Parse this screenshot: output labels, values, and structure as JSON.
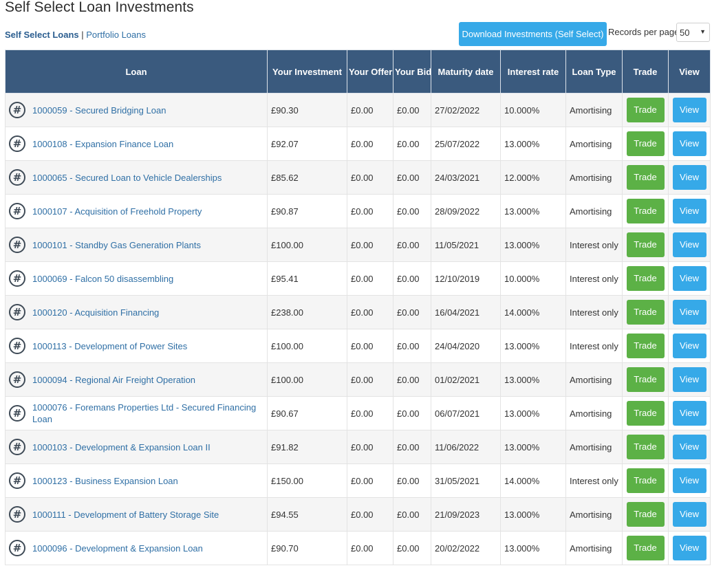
{
  "page": {
    "title": "Self Select Loan Investments",
    "nav": {
      "self_select": "Self Select Loans",
      "separator": " | ",
      "portfolio": "Portfolio Loans"
    },
    "download_label": "Download Investments (Self Select)",
    "records_label": "Records per page",
    "records_value": "50"
  },
  "table": {
    "headers": [
      "Loan",
      "Your Investment",
      "Your Offers",
      "Your Bids",
      "Maturity date",
      "Interest rate",
      "Loan Type",
      "Trade",
      "View"
    ],
    "trade_label": "Trade",
    "view_label": "View",
    "rows": [
      {
        "loan": "1000059 - Secured Bridging Loan",
        "investment": "£90.30",
        "offers": "£0.00",
        "bids": "£0.00",
        "maturity": "27/02/2022",
        "rate": "10.000%",
        "type": "Amortising"
      },
      {
        "loan": "1000108 - Expansion Finance Loan",
        "investment": "£92.07",
        "offers": "£0.00",
        "bids": "£0.00",
        "maturity": "25/07/2022",
        "rate": "13.000%",
        "type": "Amortising"
      },
      {
        "loan": "1000065 - Secured Loan to Vehicle Dealerships",
        "investment": "£85.62",
        "offers": "£0.00",
        "bids": "£0.00",
        "maturity": "24/03/2021",
        "rate": "12.000%",
        "type": "Amortising"
      },
      {
        "loan": "1000107 - Acquisition of Freehold Property",
        "investment": "£90.87",
        "offers": "£0.00",
        "bids": "£0.00",
        "maturity": "28/09/2022",
        "rate": "13.000%",
        "type": "Amortising"
      },
      {
        "loan": "1000101 - Standby Gas Generation Plants",
        "investment": "£100.00",
        "offers": "£0.00",
        "bids": "£0.00",
        "maturity": "11/05/2021",
        "rate": "13.000%",
        "type": "Interest only"
      },
      {
        "loan": "1000069 - Falcon 50 disassembling",
        "investment": "£95.41",
        "offers": "£0.00",
        "bids": "£0.00",
        "maturity": "12/10/2019",
        "rate": "10.000%",
        "type": "Interest only"
      },
      {
        "loan": "1000120 - Acquisition Financing",
        "investment": "£238.00",
        "offers": "£0.00",
        "bids": "£0.00",
        "maturity": "16/04/2021",
        "rate": "14.000%",
        "type": "Interest only"
      },
      {
        "loan": "1000113 - Development of Power Sites",
        "investment": "£100.00",
        "offers": "£0.00",
        "bids": "£0.00",
        "maturity": "24/04/2020",
        "rate": "13.000%",
        "type": "Interest only"
      },
      {
        "loan": "1000094 - Regional Air Freight Operation",
        "investment": "£100.00",
        "offers": "£0.00",
        "bids": "£0.00",
        "maturity": "01/02/2021",
        "rate": "13.000%",
        "type": "Amortising"
      },
      {
        "loan": "1000076 - Foremans Properties Ltd - Secured Financing Loan",
        "investment": "£90.67",
        "offers": "£0.00",
        "bids": "£0.00",
        "maturity": "06/07/2021",
        "rate": "13.000%",
        "type": "Amortising"
      },
      {
        "loan": "1000103 - Development & Expansion Loan II",
        "investment": "£91.82",
        "offers": "£0.00",
        "bids": "£0.00",
        "maturity": "11/06/2022",
        "rate": "13.000%",
        "type": "Amortising"
      },
      {
        "loan": "1000123 - Business Expansion Loan",
        "investment": "£150.00",
        "offers": "£0.00",
        "bids": "£0.00",
        "maturity": "31/05/2021",
        "rate": "14.000%",
        "type": "Interest only"
      },
      {
        "loan": "1000111 - Development of Battery Storage Site",
        "investment": "£94.55",
        "offers": "£0.00",
        "bids": "£0.00",
        "maturity": "21/09/2023",
        "rate": "13.000%",
        "type": "Amortising"
      },
      {
        "loan": "1000096 - Development & Expansion Loan",
        "investment": "£90.70",
        "offers": "£0.00",
        "bids": "£0.00",
        "maturity": "20/02/2022",
        "rate": "13.000%",
        "type": "Amortising"
      }
    ]
  },
  "icons": {
    "loan_icon": "hash-circle-icon",
    "select_caret": "caret-down-icon"
  },
  "colors": {
    "header_bg": "#3a5a7e",
    "trade": "#5cb146",
    "view": "#36a9e8",
    "link": "#2f6fa5"
  }
}
